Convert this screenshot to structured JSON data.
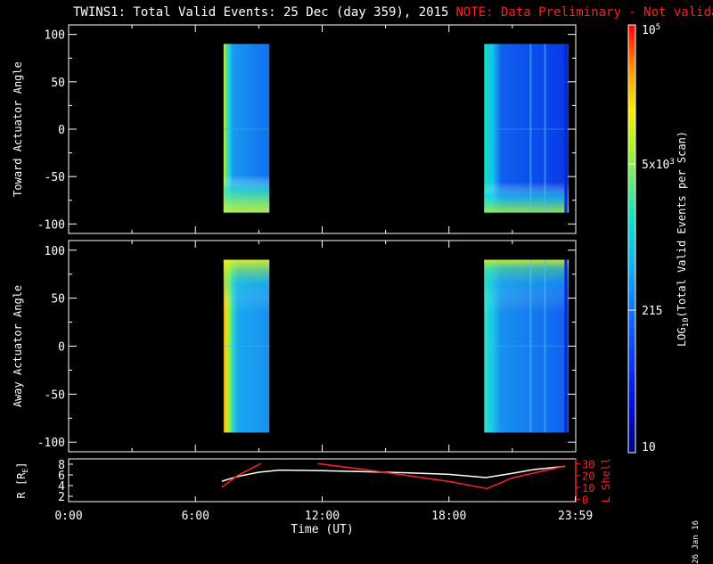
{
  "title": {
    "main": "TWINS1: Total Valid Events: 25 Dec (day 359), 2015",
    "note": "NOTE: Data Preliminary - Not validated"
  },
  "date_stamp": "26 Jan 16",
  "colors": {
    "note": "#ff2020",
    "background": "#000000",
    "axes": "#ffffff",
    "trajectory_L": "#ff2020",
    "trajectory_R": "#ffffff"
  },
  "chart_data": [
    {
      "type": "heatmap",
      "name": "toward",
      "ylabel": "Toward Actuator Angle",
      "ylim": [
        -110,
        110
      ],
      "yticks": [
        100,
        50,
        0,
        -50,
        -100
      ],
      "xlim_hours": [
        0,
        24
      ],
      "data_blocks": [
        {
          "x_start": "07:20",
          "x_end": "09:30",
          "y_range": [
            -88,
            90
          ]
        },
        {
          "x_start": "19:40",
          "x_end": "23:40",
          "y_range": [
            -88,
            90
          ]
        }
      ]
    },
    {
      "type": "heatmap",
      "name": "away",
      "ylabel": "Away Actuator Angle",
      "ylim": [
        -110,
        110
      ],
      "yticks": [
        100,
        50,
        0,
        -50,
        -100
      ],
      "xlim_hours": [
        0,
        24
      ],
      "data_blocks": [
        {
          "x_start": "07:20",
          "x_end": "09:30",
          "y_range": [
            -90,
            90
          ]
        },
        {
          "x_start": "19:40",
          "x_end": "23:40",
          "y_range": [
            -90,
            90
          ]
        }
      ]
    },
    {
      "type": "line",
      "name": "orbit",
      "ylabel_left": "R [R",
      "ylabel_left_sub": "E",
      "ylabel_left_close": "]",
      "ylabel_right": "L Shell",
      "yticks_left": [
        8,
        6,
        4,
        2
      ],
      "yticks_right": [
        30,
        20,
        10,
        0
      ],
      "xticks": [
        "0:00",
        "6:00",
        "12:00",
        "18:00",
        "23:59"
      ],
      "xlabel": "Time (UT)",
      "series": [
        {
          "axis": "left",
          "color": "#ffffff",
          "x": [
            7.25,
            8,
            9,
            10,
            12,
            14,
            16,
            18,
            19.75,
            21,
            22,
            23.5
          ],
          "y": [
            4.8,
            5.7,
            6.5,
            6.9,
            6.8,
            6.6,
            6.4,
            6.1,
            5.5,
            6.3,
            7.0,
            7.6
          ]
        },
        {
          "axis": "right",
          "color": "#ff2020",
          "x": [
            7.25,
            8,
            9.1
          ],
          "y": [
            10,
            20,
            30
          ]
        },
        {
          "axis": "right",
          "color": "#ff2020",
          "x": [
            11.8,
            14,
            16,
            18,
            19.8,
            21,
            23.5
          ],
          "y": [
            30,
            25,
            20,
            15,
            9,
            18,
            28
          ]
        }
      ]
    }
  ],
  "colorbar": {
    "label": "LOG",
    "label_sub": "10",
    "label_rest": "(Total Valid Events per Scan)",
    "ticks": [
      {
        "value": 10,
        "label": "10"
      },
      {
        "value": 215,
        "label": "215"
      },
      {
        "value": 5000,
        "label_main": "5x10",
        "label_sup": "3"
      },
      {
        "value": 100000,
        "label_main": "10",
        "label_sup": "5"
      }
    ]
  }
}
